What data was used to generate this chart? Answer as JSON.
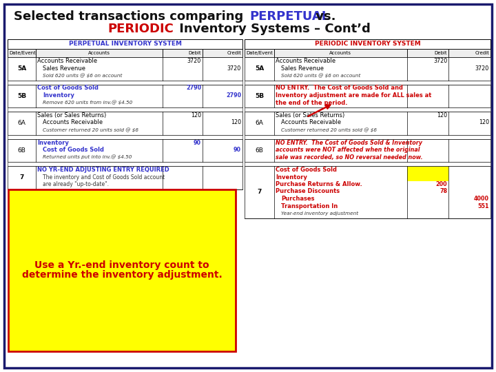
{
  "bg_color": "#ffffff",
  "border_color": "#1a1a6e",
  "title1_prefix": "Selected transactions comparing ",
  "title1_perpetual": "PERPETUAL",
  "title1_suffix": " vs.",
  "title2_periodic": "PERIODIC",
  "title2_suffix": " Inventory Systems – Cont’d",
  "left_header": "PERPETUAL INVENTORY SYSTEM",
  "left_header_color": "#3333cc",
  "right_header": "PERIODIC INVENTORY SYSTEM",
  "right_header_color": "#cc0000",
  "col_headers": [
    "Date/Event",
    "Accounts",
    "Debit",
    "Credit"
  ],
  "left_rows": [
    {
      "ev": "5A",
      "ev_bold": true,
      "lines": [
        {
          "txt": "Accounts Receivable",
          "ind": 0,
          "sty": "normal",
          "deb": "3720",
          "crd": ""
        },
        {
          "txt": "Sales Revenue",
          "ind": 1,
          "sty": "normal",
          "deb": "",
          "crd": "3720"
        },
        {
          "txt": "Sold 620 units @ $6 on account",
          "ind": 1,
          "sty": "italic_sm",
          "deb": "",
          "crd": ""
        }
      ]
    },
    {
      "ev": "",
      "ev_bold": false,
      "spacer": true
    },
    {
      "ev": "5B",
      "ev_bold": true,
      "lines": [
        {
          "txt": "Cost of Goods Sold",
          "ind": 0,
          "sty": "bold_blue",
          "deb": "2790",
          "crd": ""
        },
        {
          "txt": "Inventory",
          "ind": 1,
          "sty": "bold_blue",
          "deb": "",
          "crd": "2790"
        },
        {
          "txt": "Remove 620 units from inv.@ $4.50",
          "ind": 1,
          "sty": "italic_sm",
          "deb": "",
          "crd": ""
        }
      ]
    },
    {
      "ev": "",
      "ev_bold": false,
      "spacer": true
    },
    {
      "ev": "6A",
      "ev_bold": false,
      "lines": [
        {
          "txt": "Sales (or Sales Returns)",
          "ind": 0,
          "sty": "normal",
          "deb": "120",
          "crd": ""
        },
        {
          "txt": "Accounts Receivable",
          "ind": 1,
          "sty": "normal",
          "deb": "",
          "crd": "120"
        },
        {
          "txt": "Customer returned 20 units sold @ $6",
          "ind": 1,
          "sty": "italic_sm",
          "deb": "",
          "crd": ""
        }
      ]
    },
    {
      "ev": "",
      "ev_bold": false,
      "spacer": true
    },
    {
      "ev": "6B",
      "ev_bold": false,
      "lines": [
        {
          "txt": "Inventory",
          "ind": 0,
          "sty": "bold_blue",
          "deb": "90",
          "crd": ""
        },
        {
          "txt": "Cost of Goods Sold",
          "ind": 1,
          "sty": "bold_blue",
          "deb": "",
          "crd": "90"
        },
        {
          "txt": "Returned units put into inv.@ $4.50",
          "ind": 1,
          "sty": "italic_sm",
          "deb": "",
          "crd": ""
        }
      ]
    },
    {
      "ev": "",
      "ev_bold": false,
      "spacer": true
    },
    {
      "ev": "7",
      "ev_bold": true,
      "lines": [
        {
          "txt": "NO YR-END ADJUSTING ENTRY REQUIRED",
          "ind": 0,
          "sty": "bold_blue",
          "deb": "",
          "crd": ""
        },
        {
          "txt": "The inventory and Cost of Goods Sold account",
          "ind": 1,
          "sty": "normal_sm",
          "deb": "",
          "crd": ""
        },
        {
          "txt": "are already \"up-to-date\".",
          "ind": 1,
          "sty": "normal_sm",
          "deb": "",
          "crd": ""
        }
      ]
    }
  ],
  "right_rows": [
    {
      "ev": "5A",
      "ev_bold": true,
      "lines": [
        {
          "txt": "Accounts Receivable",
          "ind": 0,
          "sty": "normal",
          "deb": "3720",
          "crd": ""
        },
        {
          "txt": "Sales Revenue",
          "ind": 1,
          "sty": "normal",
          "deb": "",
          "crd": "3720"
        },
        {
          "txt": "Sold 620 units @ $6 on account",
          "ind": 1,
          "sty": "italic_sm",
          "deb": "",
          "crd": ""
        }
      ]
    },
    {
      "ev": "",
      "ev_bold": false,
      "spacer": true
    },
    {
      "ev": "5B",
      "ev_bold": true,
      "lines": [
        {
          "txt": "NO ENTRY.  The Cost of Goods Sold and",
          "ind": 0,
          "sty": "bold_red",
          "deb": "",
          "crd": ""
        },
        {
          "txt": "Inventory adjustment are made for ALL sales at",
          "ind": 0,
          "sty": "bold_red",
          "deb": "",
          "crd": ""
        },
        {
          "txt": "the end of the period.",
          "ind": 0,
          "sty": "bold_red",
          "deb": "",
          "crd": ""
        }
      ]
    },
    {
      "ev": "",
      "ev_bold": false,
      "spacer": true
    },
    {
      "ev": "6A",
      "ev_bold": false,
      "lines": [
        {
          "txt": "Sales (or Sales Returns)",
          "ind": 0,
          "sty": "normal",
          "deb": "120",
          "crd": ""
        },
        {
          "txt": "Accounts Receivable",
          "ind": 1,
          "sty": "normal",
          "deb": "",
          "crd": "120"
        },
        {
          "txt": "Customer returned 20 units sold @ $6",
          "ind": 1,
          "sty": "italic_sm",
          "deb": "",
          "crd": ""
        }
      ]
    },
    {
      "ev": "",
      "ev_bold": false,
      "spacer": true
    },
    {
      "ev": "6B",
      "ev_bold": false,
      "lines": [
        {
          "txt": "NO ENTRY.  The Cost of Goods Sold & Inventory",
          "ind": 0,
          "sty": "bold_red_it",
          "deb": "",
          "crd": ""
        },
        {
          "txt": "accounts were NOT affected when the original",
          "ind": 0,
          "sty": "bold_red_it",
          "deb": "",
          "crd": ""
        },
        {
          "txt": "sale was recorded, so NO reversal needed now.",
          "ind": 0,
          "sty": "bold_red_it",
          "deb": "",
          "crd": ""
        }
      ]
    },
    {
      "ev": "",
      "ev_bold": false,
      "spacer": true
    },
    {
      "ev": "7",
      "ev_bold": true,
      "lines": [
        {
          "txt": "Cost of Goods Sold",
          "ind": 0,
          "sty": "bold_red",
          "deb": "",
          "crd": "",
          "yellow_deb": true
        },
        {
          "txt": "Inventory",
          "ind": 0,
          "sty": "bold_red",
          "deb": "",
          "crd": "",
          "yellow_deb": true
        },
        {
          "txt": "Purchase Returns & Allow.",
          "ind": 0,
          "sty": "bold_red",
          "deb": "200",
          "crd": ""
        },
        {
          "txt": "Purchase Discounts",
          "ind": 0,
          "sty": "bold_red",
          "deb": "78",
          "crd": ""
        },
        {
          "txt": "Purchases",
          "ind": 1,
          "sty": "bold_red",
          "deb": "",
          "crd": "4000"
        },
        {
          "txt": "Transportation In",
          "ind": 1,
          "sty": "bold_red",
          "deb": "",
          "crd": "551"
        },
        {
          "txt": "Year-end inventory adjustment",
          "ind": 1,
          "sty": "italic_sm",
          "deb": "",
          "crd": ""
        }
      ]
    }
  ],
  "callout_text1": "Use a Yr.-end inventory count to",
  "callout_text2": "determine the inventory adjustment.",
  "callout_bg": "#ffff00",
  "callout_border": "#cc0000",
  "callout_color": "#cc0000"
}
